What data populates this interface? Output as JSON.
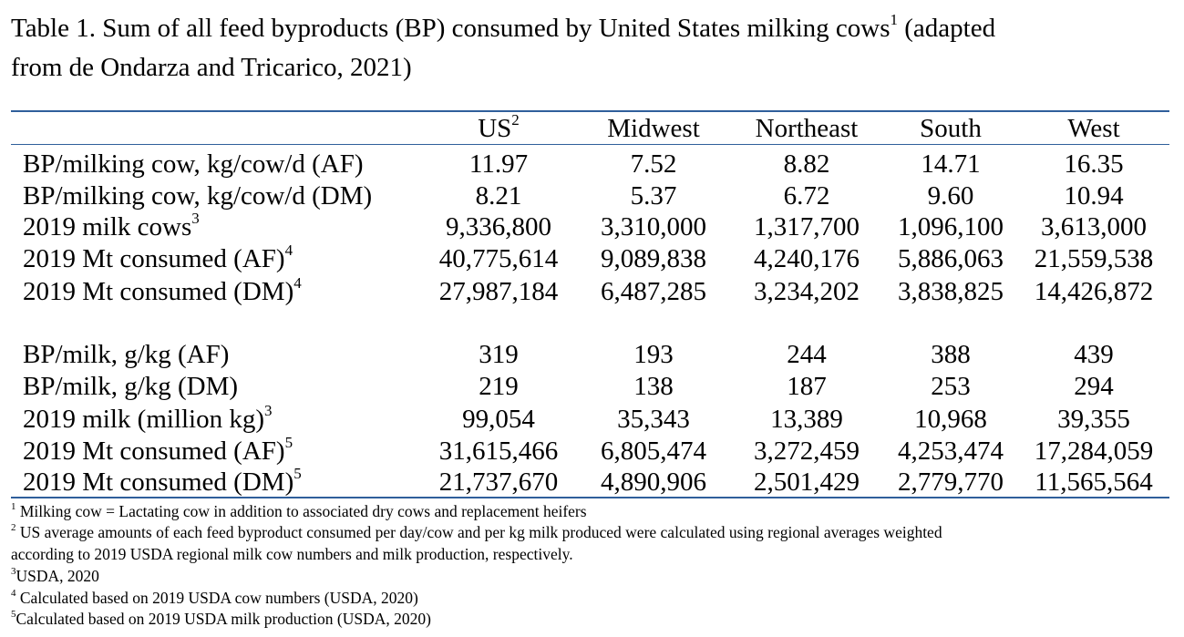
{
  "caption": {
    "text_1": "Table 1.  Sum of all feed byproducts (BP) consumed by United States milking cows",
    "sup": "1",
    "text_2": " (adapted",
    "line2": "from de Ondarza and Tricarico, 2021)"
  },
  "header": {
    "us": "US",
    "us_sup": "2",
    "regions": [
      "Midwest",
      "Northeast",
      "South",
      "West"
    ]
  },
  "rows": [
    {
      "label": "BP/milking cow, kg/cow/d (AF)",
      "sup": "",
      "values": [
        "11.97",
        "7.52",
        "8.82",
        "14.71",
        "16.35"
      ]
    },
    {
      "label": "BP/milking cow, kg/cow/d (DM)",
      "sup": "",
      "values": [
        "8.21",
        "5.37",
        "6.72",
        "9.60",
        "10.94"
      ]
    },
    {
      "label": "2019 milk cows",
      "sup": "3",
      "values": [
        "9,336,800",
        "3,310,000",
        "1,317,700",
        "1,096,100",
        "3,613,000"
      ]
    },
    {
      "label": "2019 Mt consumed (AF)",
      "sup": "4",
      "values": [
        "40,775,614",
        "9,089,838",
        "4,240,176",
        "5,886,063",
        "21,559,538"
      ]
    },
    {
      "label": "2019 Mt consumed (DM)",
      "sup": "4",
      "values": [
        "27,987,184",
        "6,487,285",
        "3,234,202",
        "3,838,825",
        "14,426,872"
      ]
    },
    {
      "label": "BP/milk, g/kg (AF)",
      "sup": "",
      "values": [
        "319",
        "193",
        "244",
        "388",
        "439"
      ]
    },
    {
      "label": "BP/milk, g/kg (DM)",
      "sup": "",
      "values": [
        "219",
        "138",
        "187",
        "253",
        "294"
      ]
    },
    {
      "label": "2019 milk (million kg)",
      "sup": "3",
      "values": [
        "99,054",
        "35,343",
        "13,389",
        "10,968",
        "39,355"
      ]
    },
    {
      "label": "2019 Mt consumed (AF)",
      "sup": "5",
      "values": [
        "31,615,466",
        "6,805,474",
        "3,272,459",
        "4,253,474",
        "17,284,059"
      ]
    },
    {
      "label": "2019 Mt consumed (DM)",
      "sup": "5",
      "values": [
        "21,737,670",
        "4,890,906",
        "2,501,429",
        "2,779,770",
        "11,565,564"
      ]
    }
  ],
  "footnotes": [
    {
      "sup": "1",
      "text": " Milking cow = Lactating cow in addition to associated dry cows and replacement heifers"
    },
    {
      "sup": "2",
      "text": " US average amounts of each feed byproduct consumed per day/cow and per kg milk produced were calculated using regional averages weighted"
    },
    {
      "sup": "",
      "text": "according to 2019 USDA regional milk cow numbers and milk production, respectively."
    },
    {
      "sup": "3",
      "text": "USDA, 2020"
    },
    {
      "sup": "4",
      "text": " Calculated based on 2019 USDA cow numbers (USDA, 2020)"
    },
    {
      "sup": "5",
      "text": "Calculated based on 2019 USDA milk production (USDA, 2020)"
    }
  ],
  "colors": {
    "rule": "#2f5f9b",
    "text": "#000000"
  }
}
